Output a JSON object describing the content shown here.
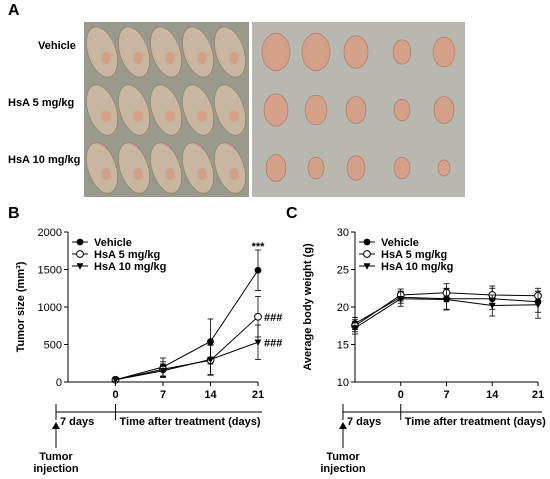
{
  "panels": {
    "a": {
      "letter": "A",
      "row_labels": [
        "Vehicle",
        "HsA 5 mg/kg",
        "HsA 10 mg/kg"
      ]
    },
    "b": {
      "letter": "B"
    },
    "c": {
      "letter": "C"
    }
  },
  "colors": {
    "line": "#000000",
    "mouse_skin": "#c9b6a0",
    "tumor": "#d4a08a",
    "photo_bg_left": "#9a9a8c",
    "photo_bg_right": "#b8b8b0"
  },
  "timeline": {
    "pre_label": "7 days",
    "post_label": "Time after treatment (days)",
    "event_label": "Tumor",
    "event_label_line2": "injection"
  },
  "chart_data": [
    {
      "id": "tumor-size",
      "type": "line",
      "title": "",
      "xlabel": "Time after treatment (days)",
      "ylabel": "Tumor size (mm³)",
      "x": [
        0,
        7,
        14,
        21
      ],
      "xticks": [
        "0",
        "7",
        "14",
        "21"
      ],
      "ylim": [
        0,
        2000
      ],
      "yticks": [
        "0",
        "500",
        "1000",
        "1500",
        "2000"
      ],
      "grid": false,
      "legend": "top-left",
      "series": [
        {
          "name": "Vehicle",
          "marker": "filled-circle",
          "values": [
            30,
            200,
            540,
            1490
          ],
          "errors": [
            20,
            120,
            300,
            270
          ]
        },
        {
          "name": "HsA 5 mg/kg",
          "marker": "open-circle",
          "values": [
            30,
            170,
            290,
            870
          ],
          "errors": [
            20,
            100,
            200,
            270
          ]
        },
        {
          "name": "HsA 10 mg/kg",
          "marker": "filled-triangle-down",
          "values": [
            30,
            150,
            300,
            530
          ],
          "errors": [
            20,
            90,
            200,
            230
          ]
        }
      ],
      "annotations": [
        {
          "text": "***",
          "x": 21,
          "y": 1800
        },
        {
          "text": "###",
          "x": 21,
          "y": 870
        },
        {
          "text": "###",
          "x": 21,
          "y": 530
        }
      ]
    },
    {
      "id": "body-weight",
      "type": "line",
      "title": "",
      "xlabel": "Time after treatment (days)",
      "ylabel": "Average body weight (g)",
      "x": [
        -7,
        0,
        7,
        14,
        21
      ],
      "xticks": [
        "0",
        "7",
        "14",
        "21"
      ],
      "ylim": [
        10,
        30
      ],
      "yticks": [
        "10",
        "15",
        "20",
        "25",
        "30"
      ],
      "grid": false,
      "legend": "top-left",
      "series": [
        {
          "name": "Vehicle",
          "marker": "filled-circle",
          "values": [
            17.8,
            21.3,
            21.1,
            21.1,
            20.7
          ],
          "errors": [
            0.8,
            0.8,
            1.4,
            1.4,
            1.4
          ]
        },
        {
          "name": "HsA 5 mg/kg",
          "marker": "open-circle",
          "values": [
            17.5,
            21.6,
            21.9,
            21.6,
            21.5
          ],
          "errors": [
            0.8,
            0.8,
            1.2,
            1.2,
            1.0
          ]
        },
        {
          "name": "HsA 10 mg/kg",
          "marker": "filled-triangle-down",
          "values": [
            17.2,
            21.1,
            21.0,
            20.2,
            20.3
          ],
          "errors": [
            0.8,
            1.0,
            1.4,
            1.4,
            1.8
          ]
        }
      ]
    }
  ]
}
